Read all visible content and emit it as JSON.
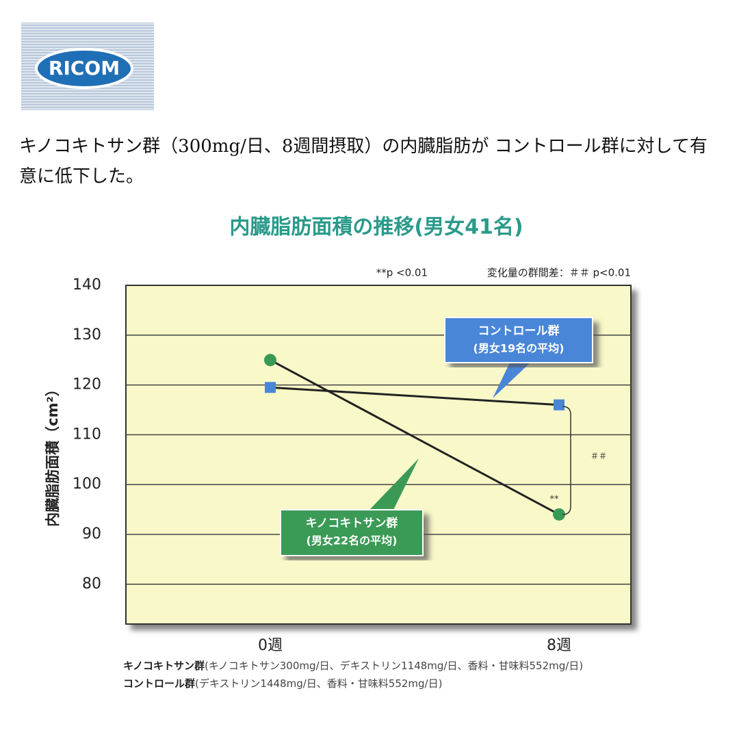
{
  "logo": "RICOM",
  "intro": "キノコキトサン群（300mg/日、8週間摂取）の内臓脂肪が コントロール群に対して有意に低下した。",
  "chart_data": {
    "type": "line",
    "title": "内臓脂肪面積の推移(男女41名)",
    "y_label": "内臓脂肪面積（cm²）",
    "note_left": "**p <0.01",
    "note_right": "変化量の群間差：＃＃ p<0.01",
    "categories": [
      "0週",
      "8週"
    ],
    "series": [
      {
        "name": "コントロール群",
        "detail": "(男女19名の平均)",
        "color": "#4a86d8",
        "marker": "square",
        "values": [
          119.5,
          116
        ]
      },
      {
        "name": "キノコキトサン群",
        "detail": "(男女22名の平均)",
        "color": "#3a9a55",
        "marker": "circle",
        "values": [
          125,
          94
        ]
      }
    ],
    "point_annotation": "**",
    "bracket_annotation": "＃＃",
    "ylim": [
      72,
      140
    ],
    "yticks": [
      80,
      90,
      100,
      110,
      120,
      130,
      140
    ],
    "grid": true,
    "footnotes": [
      {
        "group": "キノコキトサン群",
        "text": "(キノコキトサン300mg/日、デキストリン1148mg/日、香料・甘味料552mg/日)"
      },
      {
        "group": "コントロール群",
        "text": "(デキストリン1448mg/日、香料・甘味料552mg/日)"
      }
    ]
  }
}
